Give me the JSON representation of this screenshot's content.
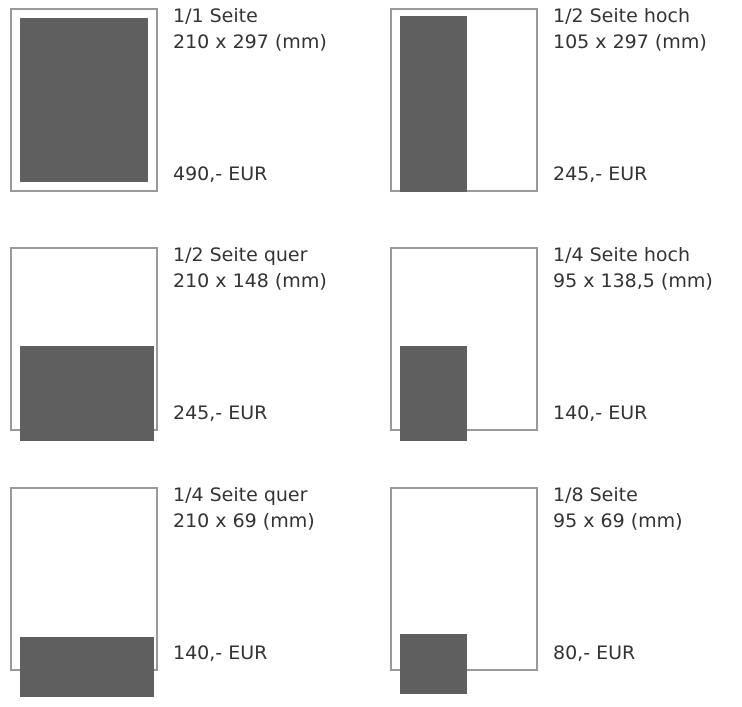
{
  "items": [
    {
      "title": "1/1 Seite",
      "size": "210 x 297 (mm)",
      "price": "490,- EUR"
    },
    {
      "title": "1/2 Seite hoch",
      "size": "105 x 297 (mm)",
      "price": "245,- EUR"
    },
    {
      "title": "1/2 Seite quer",
      "size": "210 x 148 (mm)",
      "price": "245,- EUR"
    },
    {
      "title": "1/4 Seite hoch",
      "size": "95 x 138,5 (mm)",
      "price": "140,- EUR"
    },
    {
      "title": "1/4 Seite quer",
      "size": "210 x 69 (mm)",
      "price": "140,- EUR"
    },
    {
      "title": "1/8 Seite",
      "size": "95 x 69 (mm)",
      "price": "80,- EUR"
    }
  ],
  "colors": {
    "fill": "#5f5f5f",
    "border": "#9a9a9a",
    "text": "#333333"
  }
}
